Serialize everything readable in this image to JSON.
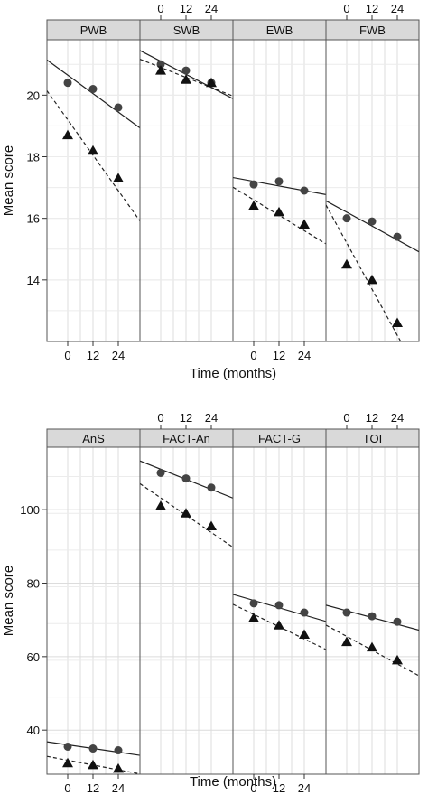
{
  "chart_data": [
    {
      "type": "scatter",
      "ylabel": "Mean score",
      "xlabel": "Time (months)",
      "x_ticks": [
        0,
        12,
        24
      ],
      "ylim": [
        12.0,
        21.8
      ],
      "y_ticks": [
        14,
        16,
        18,
        20
      ],
      "panels": [
        {
          "name": "PWB",
          "series": [
            {
              "marker": "circle",
              "line": "solid",
              "x": [
                0,
                12,
                24
              ],
              "y": [
                20.4,
                20.2,
                19.6
              ],
              "fit": [
                20.65,
                19.45
              ]
            },
            {
              "marker": "triangle",
              "line": "dashed",
              "x": [
                0,
                12,
                24
              ],
              "y": [
                18.7,
                18.2,
                17.3
              ],
              "fit": [
                19.2,
                16.9
              ]
            }
          ]
        },
        {
          "name": "SWB",
          "series": [
            {
              "marker": "circle",
              "line": "solid",
              "x": [
                0,
                12,
                24
              ],
              "y": [
                21.0,
                20.8,
                20.4
              ],
              "fit": [
                21.1,
                20.25
              ]
            },
            {
              "marker": "triangle",
              "line": "dashed",
              "x": [
                0,
                12,
                24
              ],
              "y": [
                20.8,
                20.5,
                20.4
              ],
              "fit": [
                20.9,
                20.25
              ]
            }
          ]
        },
        {
          "name": "EWB",
          "series": [
            {
              "marker": "circle",
              "line": "solid",
              "x": [
                0,
                12,
                24
              ],
              "y": [
                17.1,
                17.2,
                16.9
              ],
              "fit": [
                17.2,
                16.9
              ]
            },
            {
              "marker": "triangle",
              "line": "dashed",
              "x": [
                0,
                12,
                24
              ],
              "y": [
                16.4,
                16.2,
                15.8
              ],
              "fit": [
                16.6,
                15.6
              ]
            }
          ]
        },
        {
          "name": "FWB",
          "series": [
            {
              "marker": "circle",
              "line": "solid",
              "x": [
                0,
                12,
                24
              ],
              "y": [
                16.0,
                15.9,
                15.4
              ],
              "fit": [
                16.2,
                15.3
              ]
            },
            {
              "marker": "triangle",
              "line": "dashed",
              "x": [
                0,
                12,
                24
              ],
              "y": [
                14.5,
                14.0,
                12.6
              ],
              "fit": [
                15.2,
                12.2
              ]
            }
          ]
        }
      ]
    },
    {
      "type": "scatter",
      "ylabel": "Mean score",
      "xlabel": "Time (months)",
      "x_ticks": [
        0,
        12,
        24
      ],
      "ylim": [
        28.0,
        117.0
      ],
      "y_ticks": [
        40,
        60,
        80,
        100
      ],
      "panels": [
        {
          "name": "AnS",
          "series": [
            {
              "marker": "circle",
              "line": "solid",
              "x": [
                0,
                12,
                24
              ],
              "y": [
                35.5,
                35.0,
                34.5
              ],
              "fit": [
                36.0,
                34.0
              ]
            },
            {
              "marker": "triangle",
              "line": "dashed",
              "x": [
                0,
                12,
                24
              ],
              "y": [
                31.0,
                30.5,
                29.5
              ],
              "fit": [
                31.8,
                29.2
              ]
            }
          ]
        },
        {
          "name": "FACT-An",
          "series": [
            {
              "marker": "circle",
              "line": "solid",
              "x": [
                0,
                12,
                24
              ],
              "y": [
                110.0,
                108.5,
                106.0
              ],
              "fit": [
                111.0,
                105.5
              ]
            },
            {
              "marker": "triangle",
              "line": "dashed",
              "x": [
                0,
                12,
                24
              ],
              "y": [
                101.0,
                99.0,
                95.5
              ],
              "fit": [
                103.2,
                93.8
              ]
            }
          ]
        },
        {
          "name": "FACT-G",
          "series": [
            {
              "marker": "circle",
              "line": "solid",
              "x": [
                0,
                12,
                24
              ],
              "y": [
                74.5,
                74.0,
                72.0
              ],
              "fit": [
                75.3,
                71.3
              ]
            },
            {
              "marker": "triangle",
              "line": "dashed",
              "x": [
                0,
                12,
                24
              ],
              "y": [
                70.5,
                68.5,
                66.0
              ],
              "fit": [
                71.5,
                64.8
              ]
            }
          ]
        },
        {
          "name": "TOI",
          "series": [
            {
              "marker": "circle",
              "line": "solid",
              "x": [
                0,
                12,
                24
              ],
              "y": [
                72.0,
                71.0,
                69.5
              ],
              "fit": [
                72.5,
                68.8
              ]
            },
            {
              "marker": "triangle",
              "line": "dashed",
              "x": [
                0,
                12,
                24
              ],
              "y": [
                64.0,
                62.5,
                59.0
              ],
              "fit": [
                65.5,
                58.0
              ]
            }
          ]
        }
      ]
    }
  ]
}
